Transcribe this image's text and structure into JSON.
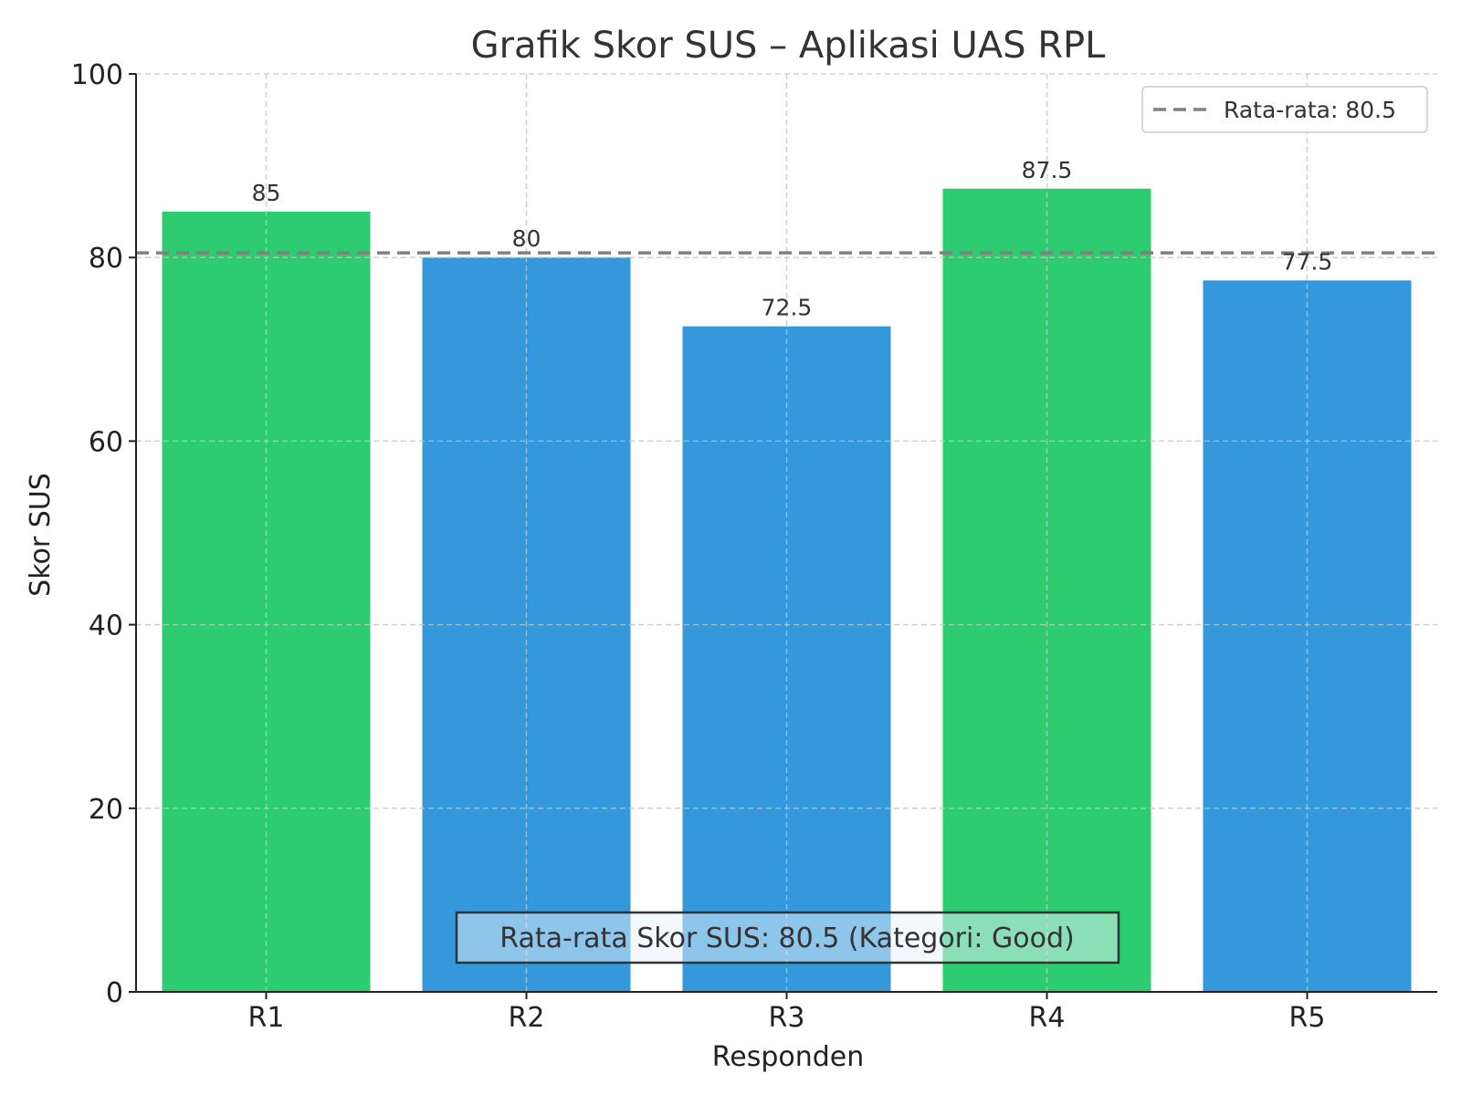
{
  "chart_data": {
    "type": "bar",
    "title": "Grafik Skor SUS – Aplikasi UAS RPL",
    "xlabel": "Responden",
    "ylabel": "Skor SUS",
    "categories": [
      "R1",
      "R2",
      "R3",
      "R4",
      "R5"
    ],
    "values": [
      85,
      80,
      72.5,
      87.5,
      77.5
    ],
    "value_labels": [
      "85",
      "80",
      "72.5",
      "87.5",
      "77.5"
    ],
    "bar_colors": [
      "#2ecc71",
      "#3498db",
      "#3498db",
      "#2ecc71",
      "#3498db"
    ],
    "ylim": [
      0,
      100
    ],
    "yticks": [
      0,
      20,
      40,
      60,
      80,
      100
    ],
    "grid": true,
    "average": 80.5,
    "average_line_color": "#808080",
    "legend": {
      "placement": "top-right",
      "label": "Rata-rata: 80.5"
    },
    "annotation": {
      "text": "Rata-rata Skor SUS: 80.5 (Kategori: Good)",
      "placement": "bottom-center",
      "background": "#e8f2fc",
      "opacity": 0.5
    }
  }
}
